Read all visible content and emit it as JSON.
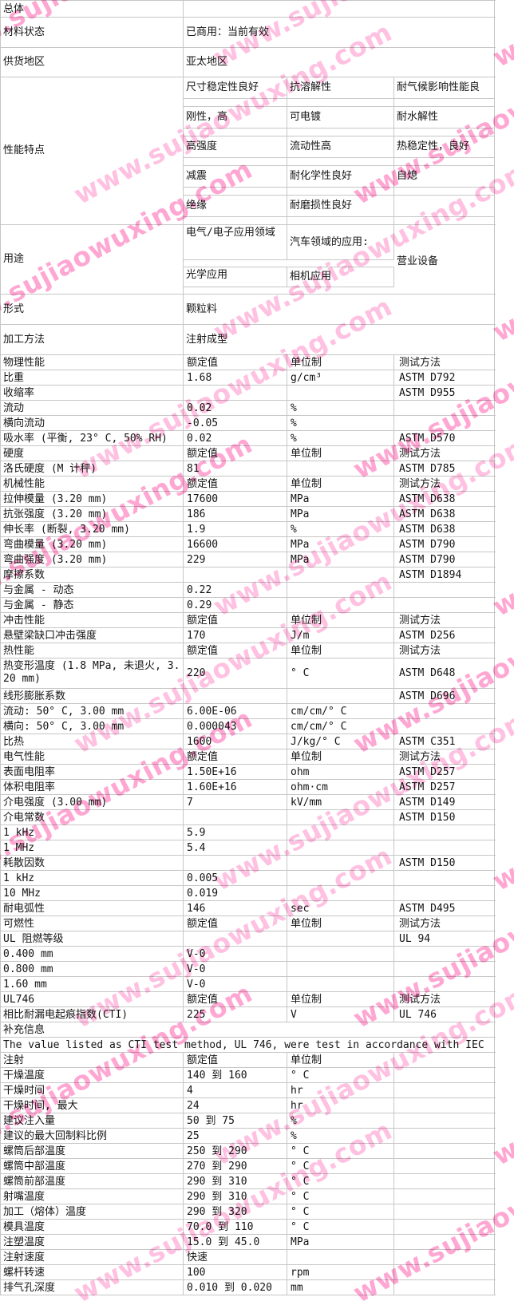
{
  "watermark": {
    "text": "www.sujiaowuxing.com",
    "color_a": "#ff5fb0",
    "color_b": "#ff8ec9"
  },
  "top": {
    "overall": {
      "label": "总体"
    },
    "material_status": {
      "label": "材料状态",
      "value": "已商用：当前有效"
    },
    "supply_region": {
      "label": "供货地区",
      "value": "亚太地区"
    },
    "features": {
      "label": "性能特点",
      "grid": [
        [
          "尺寸稳定性良好",
          "抗溶解性",
          "耐气候影响性能良"
        ],
        [
          "刚性，高",
          "可电镀",
          "耐水解性"
        ],
        [
          "高强度",
          "流动性高",
          "热稳定性，良好"
        ],
        [
          "减震",
          "耐化学性良好",
          "自熄"
        ],
        [
          "绝缘",
          "耐磨损性良好",
          ""
        ]
      ]
    },
    "uses": {
      "label": "用途",
      "grid": [
        [
          "电气/电子应用领域",
          "汽车领域的应用:"
        ],
        [
          "光学应用",
          "相机应用"
        ]
      ],
      "right": "营业设备"
    },
    "form": {
      "label": "形式",
      "value": "颗粒料"
    },
    "processing": {
      "label": "加工方法",
      "value": "注射成型"
    }
  },
  "table": {
    "rows": [
      {
        "kind": "header",
        "cells": [
          "物理性能",
          "额定值",
          "单位制",
          "测试方法"
        ]
      },
      {
        "kind": "data",
        "cells": [
          "比重",
          "1.68",
          "g/cm³",
          "ASTM D792"
        ]
      },
      {
        "kind": "data",
        "cells": [
          "收缩率",
          "",
          "",
          "ASTM D955"
        ]
      },
      {
        "kind": "data",
        "cells": [
          "流动",
          "0.02",
          "%",
          ""
        ]
      },
      {
        "kind": "data",
        "cells": [
          "横向流动",
          "-0.05",
          "%",
          ""
        ]
      },
      {
        "kind": "data",
        "cells": [
          "吸水率 (平衡, 23° C, 50% RH)",
          "0.02",
          "%",
          "ASTM D570"
        ]
      },
      {
        "kind": "header",
        "cells": [
          "硬度",
          "额定值",
          "单位制",
          "测试方法"
        ]
      },
      {
        "kind": "data",
        "cells": [
          "洛氏硬度 (M 计秤)",
          "81",
          "",
          "ASTM D785"
        ]
      },
      {
        "kind": "header",
        "cells": [
          "机械性能",
          "额定值",
          "单位制",
          "测试方法"
        ]
      },
      {
        "kind": "data",
        "cells": [
          "拉伸模量 (3.20 mm)",
          "17600",
          "MPa",
          "ASTM D638"
        ]
      },
      {
        "kind": "data",
        "cells": [
          "抗张强度 (3.20 mm)",
          "186",
          "MPa",
          "ASTM D638"
        ]
      },
      {
        "kind": "data",
        "cells": [
          "伸长率 (断裂, 3.20 mm)",
          "1.9",
          "%",
          "ASTM D638"
        ]
      },
      {
        "kind": "data",
        "cells": [
          "弯曲模量 (3.20 mm)",
          "16600",
          "MPa",
          "ASTM D790"
        ]
      },
      {
        "kind": "data",
        "cells": [
          "弯曲强度 (3.20 mm)",
          "229",
          "MPa",
          "ASTM D790"
        ]
      },
      {
        "kind": "data",
        "cells": [
          "摩擦系数",
          "",
          "",
          "ASTM D1894"
        ]
      },
      {
        "kind": "data",
        "cells": [
          "与金属 - 动态",
          "0.22",
          "",
          ""
        ]
      },
      {
        "kind": "data",
        "cells": [
          "与金属 - 静态",
          "0.29",
          "",
          ""
        ]
      },
      {
        "kind": "header",
        "cells": [
          "冲击性能",
          "额定值",
          "单位制",
          "测试方法"
        ]
      },
      {
        "kind": "data",
        "cells": [
          "悬壁梁缺口冲击强度",
          "170",
          "J/m",
          "ASTM D256"
        ]
      },
      {
        "kind": "header",
        "cells": [
          "热性能",
          "额定值",
          "单位制",
          "测试方法"
        ]
      },
      {
        "kind": "tall",
        "cells": [
          "热变形温度 (1.8 MPa, 未退火, 3.20 mm)",
          "220",
          "° C",
          "ASTM D648"
        ]
      },
      {
        "kind": "data",
        "cells": [
          "线形膨胀系数",
          "",
          "",
          "ASTM D696"
        ]
      },
      {
        "kind": "data",
        "cells": [
          "流动: 50° C, 3.00 mm",
          "6.00E-06",
          "cm/cm/° C",
          ""
        ]
      },
      {
        "kind": "data",
        "cells": [
          "横向: 50° C, 3.00 mm",
          "0.000043",
          "cm/cm/° C",
          ""
        ]
      },
      {
        "kind": "data",
        "cells": [
          "比热",
          "1600",
          "J/kg/° C",
          "ASTM C351"
        ]
      },
      {
        "kind": "header",
        "cells": [
          "电气性能",
          "额定值",
          "单位制",
          "测试方法"
        ]
      },
      {
        "kind": "data",
        "cells": [
          "表面电阻率",
          "1.50E+16",
          "ohm",
          "ASTM D257"
        ]
      },
      {
        "kind": "data",
        "cells": [
          "体积电阻率",
          "1.60E+16",
          "ohm·cm",
          "ASTM D257"
        ]
      },
      {
        "kind": "data",
        "cells": [
          "介电强度 (3.00 mm)",
          "7",
          "kV/mm",
          "ASTM D149"
        ]
      },
      {
        "kind": "data",
        "cells": [
          "介电常数",
          "",
          "",
          "ASTM D150"
        ]
      },
      {
        "kind": "data",
        "cells": [
          "1 kHz",
          "5.9",
          "",
          ""
        ]
      },
      {
        "kind": "data",
        "cells": [
          "1 MHz",
          "5.4",
          "",
          ""
        ]
      },
      {
        "kind": "data",
        "cells": [
          "耗散因数",
          "",
          "",
          "ASTM D150"
        ]
      },
      {
        "kind": "data",
        "cells": [
          "1 kHz",
          "0.005",
          "",
          ""
        ]
      },
      {
        "kind": "data",
        "cells": [
          "10 MHz",
          "0.019",
          "",
          ""
        ]
      },
      {
        "kind": "data",
        "cells": [
          "耐电弧性",
          "146",
          "sec",
          "ASTM D495"
        ]
      },
      {
        "kind": "header",
        "cells": [
          "可燃性",
          "额定值",
          "单位制",
          "测试方法"
        ]
      },
      {
        "kind": "data",
        "cells": [
          "UL 阻燃等级",
          "",
          "",
          "UL 94"
        ]
      },
      {
        "kind": "data",
        "cells": [
          "0.400 mm",
          "V-0",
          "",
          ""
        ]
      },
      {
        "kind": "data",
        "cells": [
          "0.800 mm",
          "V-0",
          "",
          ""
        ]
      },
      {
        "kind": "data",
        "cells": [
          "1.60 mm",
          "V-0",
          "",
          ""
        ]
      },
      {
        "kind": "header",
        "cells": [
          "UL746",
          "额定值",
          "单位制",
          "测试方法"
        ]
      },
      {
        "kind": "data",
        "cells": [
          "相比耐漏电起痕指数(CTI)",
          "225",
          "V",
          "UL 746"
        ]
      },
      {
        "kind": "span",
        "cells": [
          "补充信息"
        ]
      },
      {
        "kind": "span",
        "cells": [
          "The value listed as CTI test method, UL 746, were test in accordance with IEC"
        ]
      },
      {
        "kind": "header",
        "cells": [
          "注射",
          "额定值",
          "单位制",
          ""
        ]
      },
      {
        "kind": "data",
        "cells": [
          "干燥温度",
          "140 到 160",
          "° C",
          ""
        ]
      },
      {
        "kind": "data",
        "cells": [
          "干燥时间",
          "4",
          "hr",
          ""
        ]
      },
      {
        "kind": "data",
        "cells": [
          "干燥时间, 最大",
          "24",
          "hr",
          ""
        ]
      },
      {
        "kind": "data",
        "cells": [
          "建议注入量",
          "50 到 75",
          "%",
          ""
        ]
      },
      {
        "kind": "data",
        "cells": [
          "建议的最大回制料比例",
          "25",
          "%",
          ""
        ]
      },
      {
        "kind": "data",
        "cells": [
          "螺筒后部温度",
          "250 到 290",
          "° C",
          ""
        ]
      },
      {
        "kind": "data",
        "cells": [
          "螺筒中部温度",
          "270 到 290",
          "° C",
          ""
        ]
      },
      {
        "kind": "data",
        "cells": [
          "螺筒前部温度",
          "290 到 310",
          "° C",
          ""
        ]
      },
      {
        "kind": "data",
        "cells": [
          "射嘴温度",
          "290 到 310",
          "° C",
          ""
        ]
      },
      {
        "kind": "data",
        "cells": [
          "加工（熔体）温度",
          "290 到 320",
          "° C",
          ""
        ]
      },
      {
        "kind": "data",
        "cells": [
          "模具温度",
          "70.0 到 110",
          "° C",
          ""
        ]
      },
      {
        "kind": "data",
        "cells": [
          "注塑温度",
          "15.0 到 45.0",
          "MPa",
          ""
        ]
      },
      {
        "kind": "data",
        "cells": [
          "注射速度",
          "快速",
          "",
          ""
        ]
      },
      {
        "kind": "data",
        "cells": [
          "螺杆转速",
          "100",
          "rpm",
          ""
        ]
      },
      {
        "kind": "data",
        "cells": [
          "排气孔深度",
          "0.010 到 0.020",
          "mm",
          ""
        ]
      }
    ]
  }
}
